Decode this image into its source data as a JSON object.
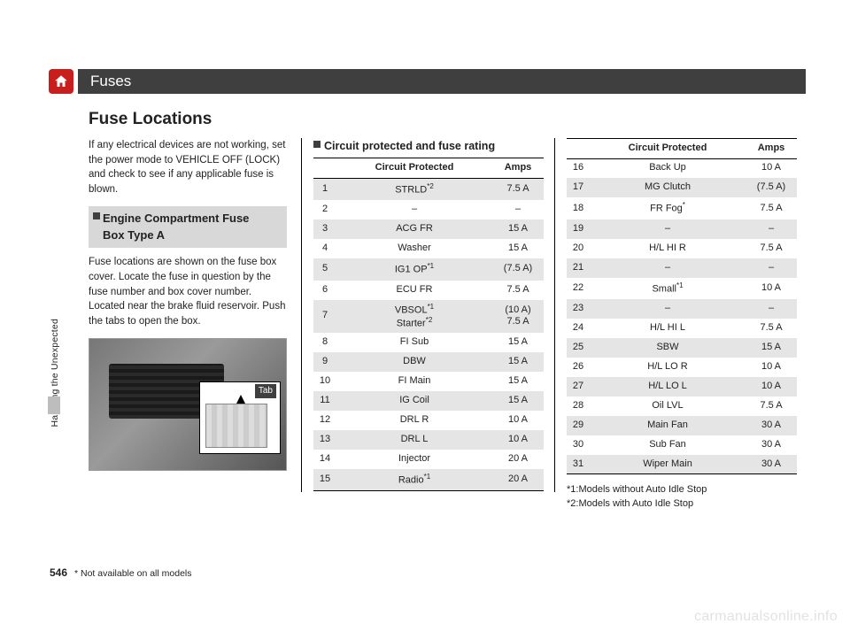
{
  "header": {
    "title": "Fuses"
  },
  "section_title": "Fuse Locations",
  "side_label": "Handling the Unexpected",
  "page_number": "546",
  "foot_note": "* Not available on all models",
  "watermark": "carmanualsonline.info",
  "col1": {
    "intro": "If any electrical devices are not working, set the power mode to VEHICLE OFF (LOCK) and check to see if any applicable fuse is blown.",
    "subhead_l1": "Engine Compartment Fuse",
    "subhead_l2": "Box Type A",
    "body": "Fuse locations are shown on the fuse box cover. Locate the fuse in question by the fuse number and box cover number. Located near the brake fluid reservoir. Push the tabs to open the box.",
    "tab_label": "Tab"
  },
  "col2": {
    "sub_section": "Circuit protected and fuse rating",
    "th_circuit": "Circuit Protected",
    "th_amps": "Amps",
    "rows": [
      {
        "n": "1",
        "c": "STRLD",
        "sup": "*2",
        "a": "7.5 A"
      },
      {
        "n": "2",
        "c": "–",
        "a": "–"
      },
      {
        "n": "3",
        "c": "ACG FR",
        "a": "15 A"
      },
      {
        "n": "4",
        "c": "Washer",
        "a": "15 A"
      },
      {
        "n": "5",
        "c": "IG1 OP",
        "sup": "*1",
        "a": "(7.5 A)"
      },
      {
        "n": "6",
        "c": "ECU FR",
        "a": "7.5 A"
      },
      {
        "n": "7",
        "c": "VBSOL",
        "sup": "*1",
        "a": "(10 A)",
        "c2": "Starter",
        "sup2": "*2",
        "a2": "7.5 A"
      },
      {
        "n": "8",
        "c": "FI Sub",
        "a": "15 A"
      },
      {
        "n": "9",
        "c": "DBW",
        "a": "15 A"
      },
      {
        "n": "10",
        "c": "FI Main",
        "a": "15 A"
      },
      {
        "n": "11",
        "c": "IG Coil",
        "a": "15 A"
      },
      {
        "n": "12",
        "c": "DRL R",
        "a": "10 A"
      },
      {
        "n": "13",
        "c": "DRL L",
        "a": "10 A"
      },
      {
        "n": "14",
        "c": "Injector",
        "a": "20 A"
      },
      {
        "n": "15",
        "c": "Radio",
        "sup": "*1",
        "a": "20 A"
      }
    ]
  },
  "col3": {
    "th_circuit": "Circuit Protected",
    "th_amps": "Amps",
    "rows": [
      {
        "n": "16",
        "c": "Back Up",
        "a": "10 A"
      },
      {
        "n": "17",
        "c": "MG Clutch",
        "a": "(7.5 A)"
      },
      {
        "n": "18",
        "c": "FR Fog",
        "sup": "*",
        "a": "7.5 A"
      },
      {
        "n": "19",
        "c": "–",
        "a": "–"
      },
      {
        "n": "20",
        "c": "H/L HI R",
        "a": "7.5 A"
      },
      {
        "n": "21",
        "c": "–",
        "a": "–"
      },
      {
        "n": "22",
        "c": "Small",
        "sup": "*1",
        "a": "10 A"
      },
      {
        "n": "23",
        "c": "–",
        "a": "–"
      },
      {
        "n": "24",
        "c": "H/L HI L",
        "a": "7.5 A"
      },
      {
        "n": "25",
        "c": "SBW",
        "a": "15 A"
      },
      {
        "n": "26",
        "c": "H/L LO R",
        "a": "10 A"
      },
      {
        "n": "27",
        "c": "H/L LO L",
        "a": "10 A"
      },
      {
        "n": "28",
        "c": "Oil LVL",
        "a": "7.5 A"
      },
      {
        "n": "29",
        "c": "Main Fan",
        "a": "30 A"
      },
      {
        "n": "30",
        "c": "Sub Fan",
        "a": "30 A"
      },
      {
        "n": "31",
        "c": "Wiper Main",
        "a": "30 A"
      }
    ],
    "footnote1": "*1:Models without Auto Idle Stop",
    "footnote2": "*2:Models with Auto Idle Stop"
  }
}
